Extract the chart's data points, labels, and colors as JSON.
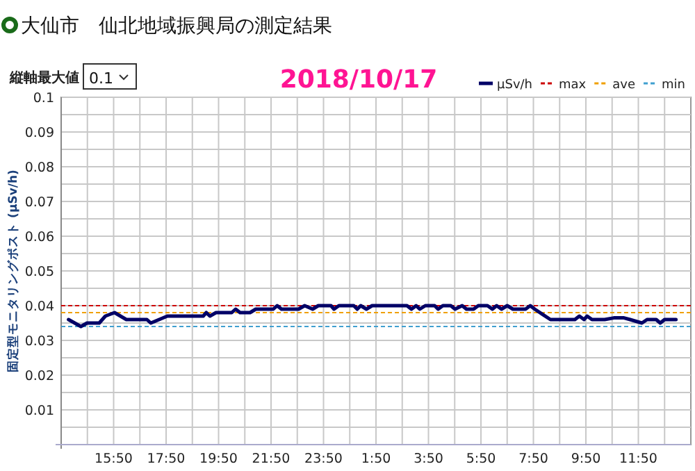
{
  "chart_data": {
    "type": "line",
    "title": "大仙市　仙北地域振興局の測定結果",
    "subtitle": "2018/10/17",
    "ylabel": "固定型モニタリングポスト (μSv/h)",
    "annotations": [
      "縦軸最大値",
      "0.1"
    ],
    "series": [
      {
        "name": "μSv/h",
        "color": "#000066",
        "x": [
          "2018-10-16T14:07",
          "2018-10-16T14:35",
          "2018-10-16T14:49",
          "2018-10-16T15:17",
          "2018-10-16T15:31",
          "2018-10-16T15:52",
          "2018-10-16T16:19",
          "2018-10-16T17:06",
          "2018-10-16T17:15",
          "2018-10-16T17:53",
          "2018-10-16T19:15",
          "2018-10-16T19:22",
          "2018-10-16T19:30",
          "2018-10-16T19:44",
          "2018-10-16T20:20",
          "2018-10-16T20:29",
          "2018-10-16T20:39",
          "2018-10-16T21:02",
          "2018-10-16T21:15",
          "2018-10-16T21:55",
          "2018-10-16T22:04",
          "2018-10-16T22:14",
          "2018-10-16T22:53",
          "2018-10-16T23:07",
          "2018-10-16T23:25",
          "2018-10-16T23:38",
          "2018-10-17T00:07",
          "2018-10-17T00:14",
          "2018-10-17T00:25",
          "2018-10-17T00:59",
          "2018-10-17T01:07",
          "2018-10-17T01:15",
          "2018-10-17T01:28",
          "2018-10-17T01:41",
          "2018-10-17T03:01",
          "2018-10-17T03:11",
          "2018-10-17T03:22",
          "2018-10-17T03:30",
          "2018-10-17T03:43",
          "2018-10-17T04:04",
          "2018-10-17T04:12",
          "2018-10-17T04:23",
          "2018-10-17T04:41",
          "2018-10-17T04:51",
          "2018-10-17T05:07",
          "2018-10-17T05:17",
          "2018-10-17T05:33",
          "2018-10-17T05:44",
          "2018-10-17T06:05",
          "2018-10-17T06:16",
          "2018-10-17T06:26",
          "2018-10-17T06:37",
          "2018-10-17T06:50",
          "2018-10-17T07:03",
          "2018-10-17T07:32",
          "2018-10-17T07:43",
          "2018-10-17T07:53",
          "2018-10-17T08:11",
          "2018-10-17T08:29",
          "2018-10-17T09:25",
          "2018-10-17T09:35",
          "2018-10-17T09:46",
          "2018-10-17T09:53",
          "2018-10-17T10:04",
          "2018-10-17T10:33",
          "2018-10-17T10:54",
          "2018-10-17T11:17",
          "2018-10-17T11:31",
          "2018-10-17T11:58",
          "2018-10-17T12:10",
          "2018-10-17T12:31",
          "2018-10-17T12:40",
          "2018-10-17T12:50",
          "2018-10-17T13:16"
        ],
        "values": [
          0.036,
          0.034,
          0.035,
          0.035,
          0.037,
          0.038,
          0.036,
          0.036,
          0.035,
          0.037,
          0.037,
          0.038,
          0.037,
          0.038,
          0.038,
          0.039,
          0.038,
          0.038,
          0.039,
          0.039,
          0.04,
          0.039,
          0.039,
          0.04,
          0.039,
          0.04,
          0.04,
          0.039,
          0.04,
          0.04,
          0.039,
          0.04,
          0.039,
          0.04,
          0.04,
          0.039,
          0.04,
          0.039,
          0.04,
          0.04,
          0.039,
          0.04,
          0.04,
          0.039,
          0.04,
          0.039,
          0.039,
          0.04,
          0.04,
          0.039,
          0.04,
          0.039,
          0.04,
          0.039,
          0.039,
          0.04,
          0.039,
          0.0375,
          0.036,
          0.036,
          0.037,
          0.036,
          0.037,
          0.036,
          0.036,
          0.0365,
          0.0365,
          0.036,
          0.035,
          0.036,
          0.036,
          0.035,
          0.036,
          0.036
        ]
      }
    ],
    "ref_lines": [
      {
        "axis": "y",
        "value": 0.04,
        "label": "max",
        "color": "#cc0000",
        "line_style": "dashed"
      },
      {
        "axis": "y",
        "value": 0.038,
        "label": "ave",
        "color": "#f0a000",
        "line_style": "dashed"
      },
      {
        "axis": "y",
        "value": 0.034,
        "label": "min",
        "color": "#40a0d0",
        "line_style": "dashed"
      }
    ],
    "xlim": [
      "2018-10-16T13:50",
      "2018-10-17T13:50"
    ],
    "xticks": [
      {
        "value": "2018-10-16T14:50",
        "label": null
      },
      {
        "value": "2018-10-16T15:50",
        "label": "15:50"
      },
      {
        "value": "2018-10-16T16:50",
        "label": null
      },
      {
        "value": "2018-10-16T17:50",
        "label": "17:50"
      },
      {
        "value": "2018-10-16T18:50",
        "label": null
      },
      {
        "value": "2018-10-16T19:50",
        "label": "19:50"
      },
      {
        "value": "2018-10-16T20:50",
        "label": null
      },
      {
        "value": "2018-10-16T21:50",
        "label": "21:50"
      },
      {
        "value": "2018-10-16T22:50",
        "label": null
      },
      {
        "value": "2018-10-16T23:50",
        "label": "23:50"
      },
      {
        "value": "2018-10-17T00:50",
        "label": null
      },
      {
        "value": "2018-10-17T01:50",
        "label": "1:50"
      },
      {
        "value": "2018-10-17T02:50",
        "label": null
      },
      {
        "value": "2018-10-17T03:50",
        "label": "3:50"
      },
      {
        "value": "2018-10-17T04:50",
        "label": null
      },
      {
        "value": "2018-10-17T05:50",
        "label": "5:50"
      },
      {
        "value": "2018-10-17T06:50",
        "label": null
      },
      {
        "value": "2018-10-17T07:50",
        "label": "7:50"
      },
      {
        "value": "2018-10-17T08:50",
        "label": null
      },
      {
        "value": "2018-10-17T09:50",
        "label": "9:50"
      },
      {
        "value": "2018-10-17T10:50",
        "label": null
      },
      {
        "value": "2018-10-17T11:50",
        "label": "11:50"
      },
      {
        "value": "2018-10-17T12:50",
        "label": null
      }
    ],
    "ylim": [
      0,
      0.1
    ],
    "yticks": [
      {
        "value": 0.005,
        "label": null
      },
      0.01,
      {
        "value": 0.015,
        "label": null
      },
      0.02,
      {
        "value": 0.025,
        "label": null
      },
      0.03,
      {
        "value": 0.035,
        "label": null
      },
      0.04,
      {
        "value": 0.045,
        "label": null
      },
      0.05,
      {
        "value": 0.055,
        "label": null
      },
      0.06,
      {
        "value": 0.065,
        "label": null
      },
      0.07,
      {
        "value": 0.075,
        "label": null
      },
      0.08,
      {
        "value": 0.085,
        "label": null
      },
      0.09,
      {
        "value": 0.095,
        "label": null
      },
      0.1
    ],
    "grid": true,
    "legend": "top right",
    "line_style": "solid",
    "marker": "none"
  }
}
